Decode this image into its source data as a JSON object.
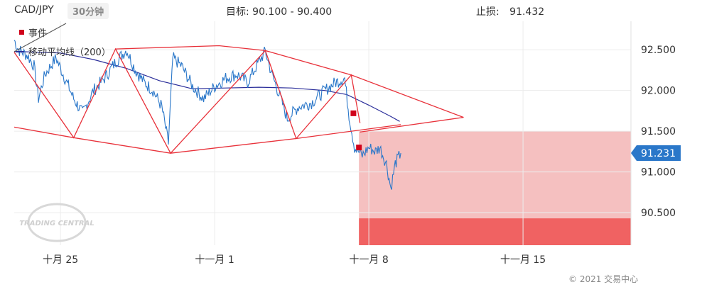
{
  "header": {
    "symbol": "CAD/JPY",
    "timeframe": "30分钟",
    "target_label": "目标:",
    "target_value": "90.100 - 90.400",
    "stop_label": "止损:",
    "stop_value": "91.432"
  },
  "legend": {
    "event": "事件",
    "ma": "移动平均线（200）"
  },
  "watermark": "TRADING CENTRAL",
  "copyright": "© 2021 交易中心",
  "colors": {
    "price": "#2a77c9",
    "ma": "#2b2e9a",
    "pattern": "#e8313a",
    "zone_light": "#f5c0c0",
    "zone_dark": "#f06262",
    "current_tag": "#2a77c9"
  },
  "chart_data": {
    "type": "line",
    "ylim": [
      90.1,
      92.85
    ],
    "y_ticks": [
      92.5,
      92.0,
      91.5,
      91.0,
      90.5
    ],
    "y_tick_labels": [
      "92.500",
      "92.000",
      "91.500",
      "91.000",
      "90.500"
    ],
    "x_ticks": [
      "十月 25",
      "十一月 1",
      "十一月 8",
      "十一月 15"
    ],
    "x_tick_days": [
      25,
      32,
      39,
      46
    ],
    "xlim_days": [
      22.9,
      50.9
    ],
    "current_price": 91.231,
    "current_price_label": "91.231",
    "price_series": {
      "name": "CAD/JPY",
      "anchors": [
        [
          22.9,
          92.62
        ],
        [
          23.1,
          92.5
        ],
        [
          23.5,
          92.43
        ],
        [
          23.8,
          92.3
        ],
        [
          24.0,
          91.9
        ],
        [
          24.3,
          92.2
        ],
        [
          24.8,
          92.4
        ],
        [
          25.2,
          92.15
        ],
        [
          25.6,
          91.9
        ],
        [
          26.0,
          91.72
        ],
        [
          26.5,
          92.0
        ],
        [
          27.0,
          92.15
        ],
        [
          27.5,
          92.35
        ],
        [
          28.0,
          92.5
        ],
        [
          28.4,
          92.25
        ],
        [
          28.8,
          92.1
        ],
        [
          29.2,
          92.0
        ],
        [
          29.6,
          91.8
        ],
        [
          29.9,
          91.35
        ],
        [
          30.1,
          92.4
        ],
        [
          30.5,
          92.3
        ],
        [
          31.0,
          92.05
        ],
        [
          31.5,
          91.9
        ],
        [
          32.0,
          92.05
        ],
        [
          32.5,
          92.15
        ],
        [
          33.0,
          92.2
        ],
        [
          33.5,
          92.1
        ],
        [
          34.0,
          92.35
        ],
        [
          34.3,
          92.48
        ],
        [
          34.6,
          92.2
        ],
        [
          35.0,
          91.9
        ],
        [
          35.3,
          91.65
        ],
        [
          35.8,
          91.8
        ],
        [
          36.4,
          91.85
        ],
        [
          37.0,
          92.0
        ],
        [
          37.5,
          92.1
        ],
        [
          37.9,
          92.15
        ],
        [
          38.1,
          91.7
        ],
        [
          38.35,
          91.3
        ],
        [
          38.7,
          91.2
        ],
        [
          39.0,
          91.3
        ],
        [
          39.3,
          91.25
        ],
        [
          39.5,
          91.3
        ],
        [
          39.8,
          91.1
        ],
        [
          40.0,
          90.8
        ],
        [
          40.2,
          91.1
        ],
        [
          40.45,
          91.231
        ]
      ]
    },
    "ma_series": {
      "name": "移动平均线（200）",
      "points": [
        [
          22.9,
          92.48
        ],
        [
          25.0,
          92.46
        ],
        [
          26.5,
          92.38
        ],
        [
          28.0,
          92.27
        ],
        [
          29.5,
          92.12
        ],
        [
          31.0,
          92.02
        ],
        [
          32.5,
          92.03
        ],
        [
          34.0,
          92.04
        ],
        [
          35.5,
          92.03
        ],
        [
          37.0,
          92.0
        ],
        [
          38.0,
          91.95
        ],
        [
          39.0,
          91.82
        ],
        [
          40.0,
          91.68
        ],
        [
          40.4,
          91.62
        ]
      ]
    },
    "pattern_lines": [
      {
        "points": [
          [
            22.9,
            92.47
          ],
          [
            25.6,
            91.42
          ],
          [
            27.5,
            92.51
          ],
          [
            30.0,
            91.23
          ],
          [
            34.3,
            92.49
          ],
          [
            35.7,
            91.41
          ],
          [
            38.2,
            92.19
          ],
          [
            38.6,
            91.6
          ]
        ]
      },
      {
        "points": [
          [
            22.9,
            91.55
          ],
          [
            25.6,
            91.42
          ],
          [
            30.0,
            91.23
          ],
          [
            35.7,
            91.41
          ],
          [
            40.45,
            91.58
          ]
        ]
      },
      {
        "points": [
          [
            27.5,
            92.51
          ],
          [
            32.2,
            92.55
          ],
          [
            34.3,
            92.49
          ],
          [
            38.2,
            92.19
          ],
          [
            43.3,
            91.67
          ],
          [
            38.6,
            91.49
          ]
        ]
      }
    ],
    "events": [
      [
        38.3,
        91.72
      ],
      [
        38.55,
        91.3
      ]
    ],
    "zones": [
      {
        "from_day": 38.55,
        "to_day": 50.9,
        "y_low": 90.43,
        "y_high": 91.5,
        "color": "light"
      },
      {
        "from_day": 38.55,
        "to_day": 50.9,
        "y_low": 90.1,
        "y_high": 90.43,
        "color": "dark"
      }
    ]
  }
}
